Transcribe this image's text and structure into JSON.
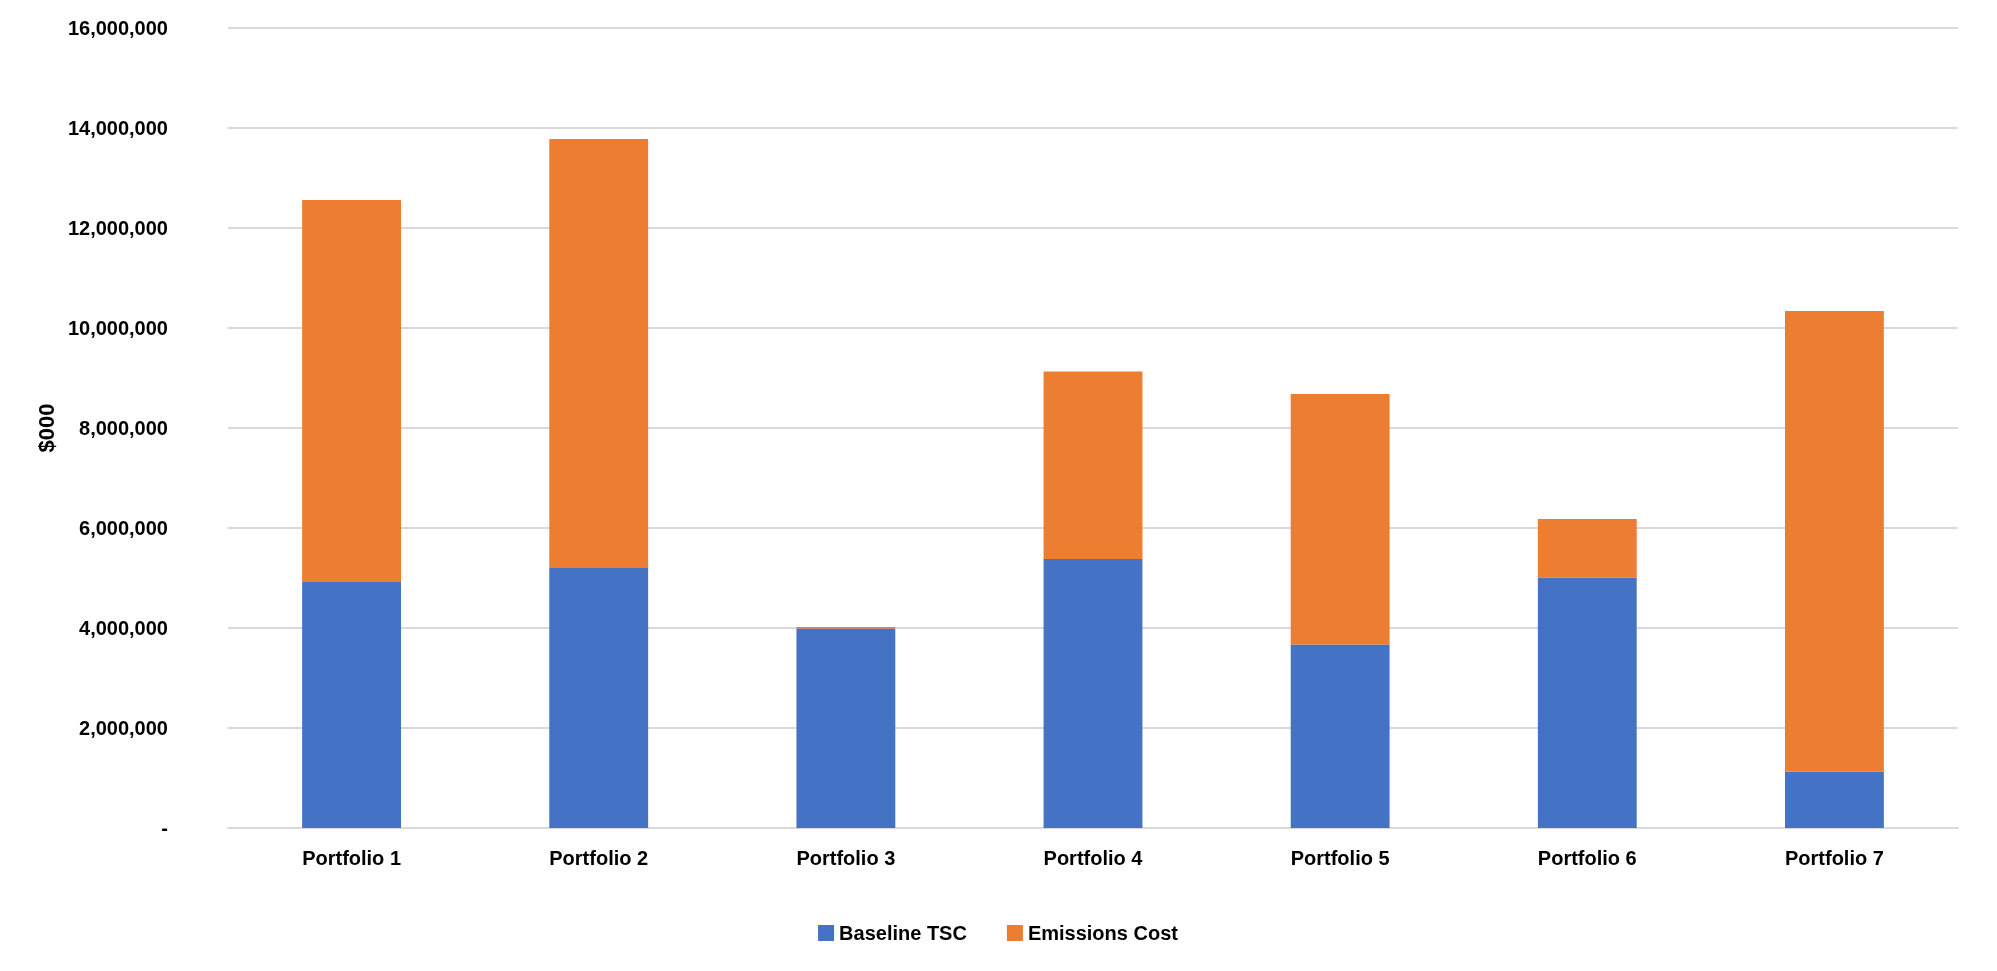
{
  "chart_data": {
    "type": "bar",
    "stacked": true,
    "ylabel": "$000",
    "categories": [
      "Portfolio 1",
      "Portfolio 2",
      "Portfolio 3",
      "Portfolio 4",
      "Portfolio 5",
      "Portfolio 6",
      "Portfolio 7"
    ],
    "series": [
      {
        "name": "Baseline TSC",
        "color": "#4472c4",
        "values": [
          4920000,
          5200000,
          3990000,
          5380000,
          3670000,
          5010000,
          1130000
        ]
      },
      {
        "name": "Emissions Cost",
        "color": "#ed7d31",
        "values": [
          7640000,
          8580000,
          30000,
          3750000,
          5010000,
          1170000,
          9210000
        ]
      }
    ],
    "ylim": [
      0,
      16000000
    ],
    "yticks": [
      {
        "value": 0,
        "label": "-"
      },
      {
        "value": 2000000,
        "label": "2,000,000"
      },
      {
        "value": 4000000,
        "label": "4,000,000"
      },
      {
        "value": 6000000,
        "label": "6,000,000"
      },
      {
        "value": 8000000,
        "label": "8,000,000"
      },
      {
        "value": 10000000,
        "label": "10,000,000"
      },
      {
        "value": 12000000,
        "label": "12,000,000"
      },
      {
        "value": 14000000,
        "label": "14,000,000"
      },
      {
        "value": 16000000,
        "label": "16,000,000"
      }
    ],
    "grid": "y",
    "legend": "bottom"
  }
}
